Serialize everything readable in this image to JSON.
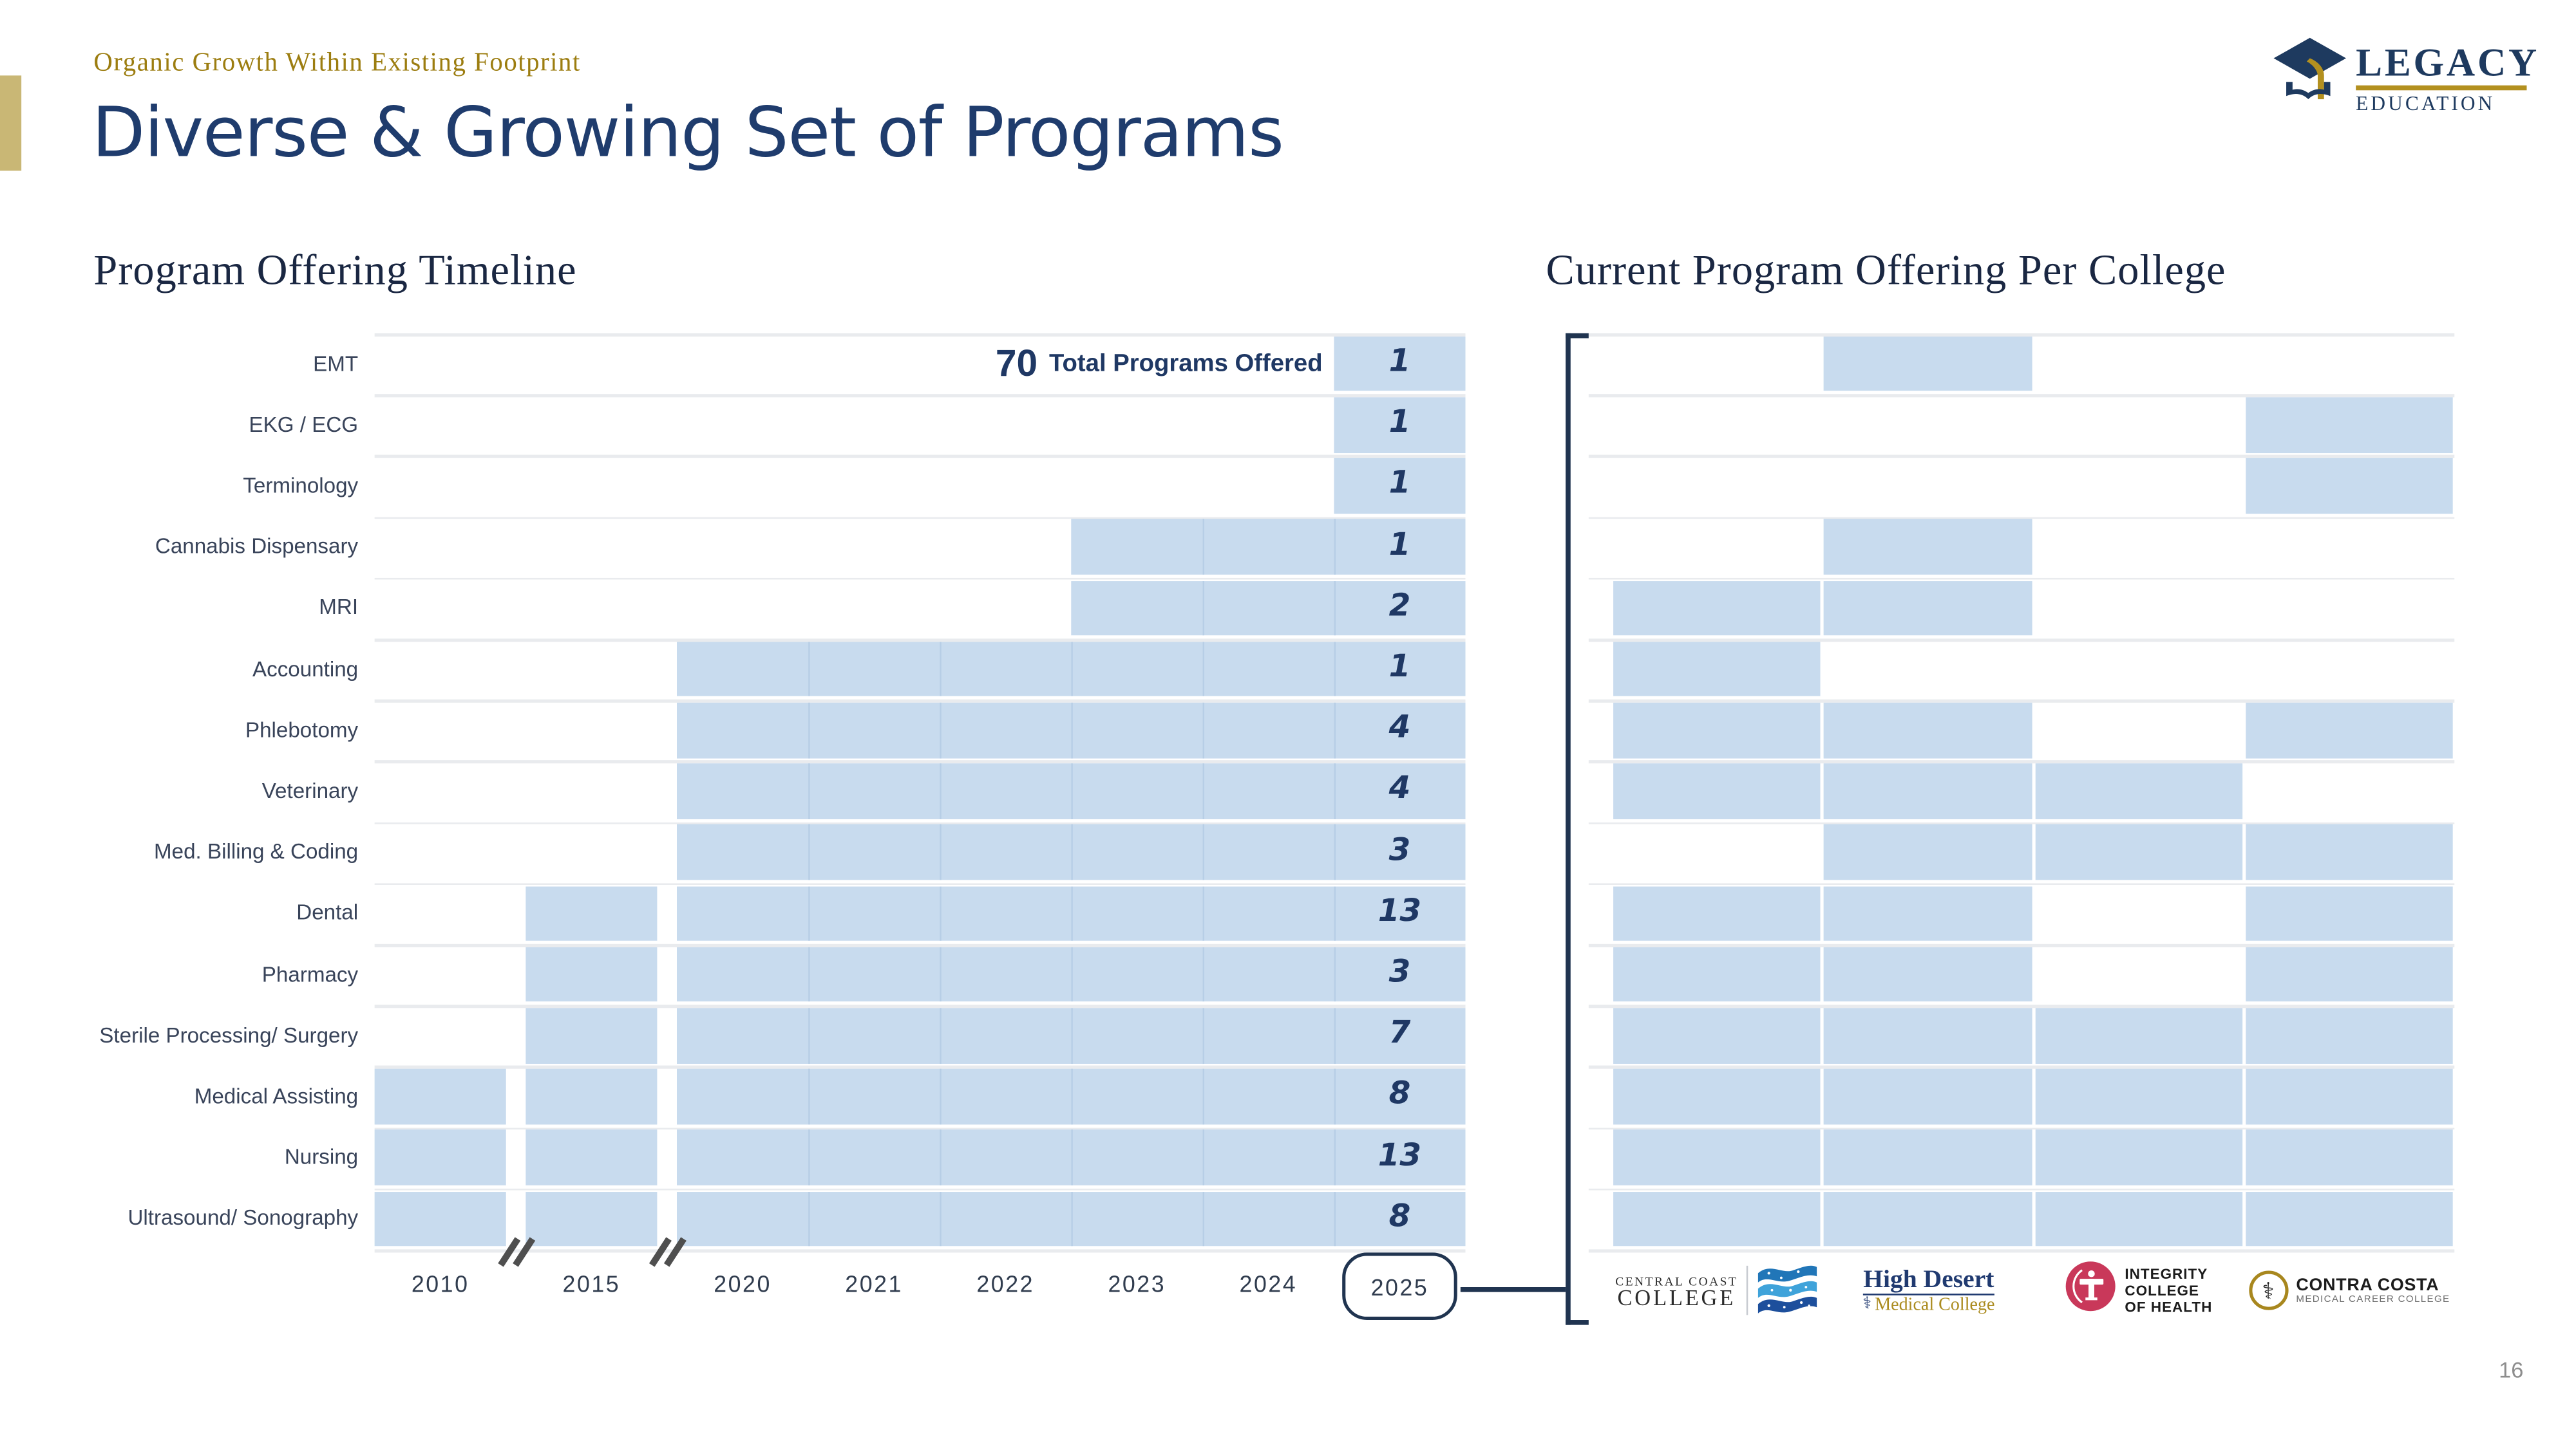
{
  "slide": {
    "kicker": "Organic Growth Within Existing Footprint",
    "title": "Diverse & Growing Set of Programs",
    "page_number": "16"
  },
  "brand": {
    "word_top": "LEGACY",
    "word_bottom": "EDUCATION"
  },
  "left_chart_heading": "Program Offering Timeline",
  "right_chart_heading": "Current Program Offering Per College",
  "colors": {
    "navy": "#1f3864",
    "cell_blue": "#c8dbee",
    "grid_gray": "#e9ebee",
    "gold_text": "#9c7d10",
    "gold_bar": "#c9b775"
  },
  "chart_data": [
    {
      "type": "heatmap",
      "name": "program-offering-timeline",
      "title": "Program Offering Timeline",
      "x_categories": [
        "2010",
        "2015",
        "2020",
        "2021",
        "2022",
        "2023",
        "2024",
        "2025"
      ],
      "x_axis_breaks_after": [
        "2010",
        "2015"
      ],
      "highlighted_year": "2025",
      "annotation": {
        "value": "70",
        "label": "Total Programs Offered"
      },
      "legend_note": "shaded cell = program offered that year",
      "rows": [
        {
          "label": "EMT",
          "offered_since": "2025",
          "count_2025": 1
        },
        {
          "label": "EKG / ECG",
          "offered_since": "2025",
          "count_2025": 1
        },
        {
          "label": "Terminology",
          "offered_since": "2025",
          "count_2025": 1
        },
        {
          "label": "Cannabis Dispensary",
          "offered_since": "2023",
          "count_2025": 1
        },
        {
          "label": "MRI",
          "offered_since": "2023",
          "count_2025": 2
        },
        {
          "label": "Accounting",
          "offered_since": "2020",
          "count_2025": 1
        },
        {
          "label": "Phlebotomy",
          "offered_since": "2020",
          "count_2025": 4
        },
        {
          "label": "Veterinary",
          "offered_since": "2020",
          "count_2025": 4
        },
        {
          "label": "Med. Billing & Coding",
          "offered_since": "2020",
          "count_2025": 3
        },
        {
          "label": "Dental",
          "offered_since": "2015",
          "count_2025": 13
        },
        {
          "label": "Pharmacy",
          "offered_since": "2015",
          "count_2025": 3
        },
        {
          "label": "Sterile Processing/ Surgery",
          "offered_since": "2015",
          "count_2025": 7
        },
        {
          "label": "Medical Assisting",
          "offered_since": "2010",
          "count_2025": 8
        },
        {
          "label": "Nursing",
          "offered_since": "2010",
          "count_2025": 13
        },
        {
          "label": "Ultrasound/ Sonography",
          "offered_since": "2010",
          "count_2025": 8
        }
      ]
    },
    {
      "type": "heatmap",
      "name": "current-program-offering-per-college",
      "title": "Current Program Offering Per College",
      "columns": [
        "Central Coast College",
        "High Desert Medical College",
        "Integrity College of Health",
        "Contra Costa Medical Career College"
      ],
      "rows": [
        {
          "label": "EMT",
          "offered": [
            0,
            1,
            0,
            0
          ]
        },
        {
          "label": "EKG / ECG",
          "offered": [
            0,
            0,
            0,
            1
          ]
        },
        {
          "label": "Terminology",
          "offered": [
            0,
            0,
            0,
            1
          ]
        },
        {
          "label": "Cannabis Dispensary",
          "offered": [
            0,
            1,
            0,
            0
          ]
        },
        {
          "label": "MRI",
          "offered": [
            1,
            1,
            0,
            0
          ]
        },
        {
          "label": "Accounting",
          "offered": [
            1,
            0,
            0,
            0
          ]
        },
        {
          "label": "Phlebotomy",
          "offered": [
            1,
            1,
            0,
            1
          ]
        },
        {
          "label": "Veterinary",
          "offered": [
            1,
            1,
            1,
            0
          ]
        },
        {
          "label": "Med. Billing & Coding",
          "offered": [
            0,
            1,
            1,
            1
          ]
        },
        {
          "label": "Dental",
          "offered": [
            1,
            1,
            0,
            1
          ]
        },
        {
          "label": "Pharmacy",
          "offered": [
            1,
            1,
            0,
            1
          ]
        },
        {
          "label": "Sterile Processing/ Surgery",
          "offered": [
            1,
            1,
            1,
            1
          ]
        },
        {
          "label": "Medical Assisting",
          "offered": [
            1,
            1,
            1,
            1
          ]
        },
        {
          "label": "Nursing",
          "offered": [
            1,
            1,
            1,
            1
          ]
        },
        {
          "label": "Ultrasound/ Sonography",
          "offered": [
            1,
            1,
            1,
            1
          ]
        }
      ]
    }
  ],
  "college_logos": [
    {
      "name": "Central Coast College",
      "line1": "CENTRAL COAST",
      "line2": "COLLEGE"
    },
    {
      "name": "High Desert Medical College",
      "line1": "High Desert",
      "line2": "Medical College"
    },
    {
      "name": "Integrity College of Health",
      "line1": "INTEGRITY",
      "line2": "COLLEGE",
      "line3": "OF HEALTH"
    },
    {
      "name": "Contra Costa Medical Career College",
      "line1": "CONTRA COSTA",
      "line2": "MEDICAL CAREER COLLEGE"
    }
  ]
}
